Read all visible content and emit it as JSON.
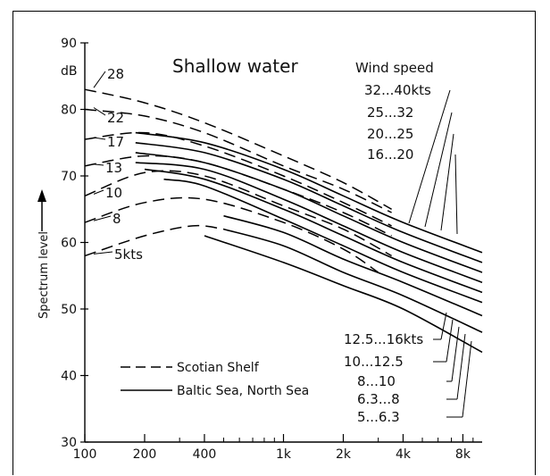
{
  "chart_data": {
    "type": "line",
    "title": "Shallow water",
    "ylabel": "Spectrum level",
    "y_unit": "dB",
    "x_scale": "log",
    "xlim": [
      100,
      10000
    ],
    "ylim": [
      30,
      90
    ],
    "y_ticks": [
      30,
      40,
      50,
      60,
      70,
      80,
      90
    ],
    "x_ticks": [
      {
        "value": 100,
        "label": "100"
      },
      {
        "value": 200,
        "label": "200"
      },
      {
        "value": 400,
        "label": "400"
      },
      {
        "value": 1000,
        "label": "1k"
      },
      {
        "value": 2000,
        "label": "2k"
      },
      {
        "value": 4000,
        "label": "4k"
      },
      {
        "value": 8000,
        "label": "8k"
      }
    ],
    "legend": {
      "entries": [
        {
          "label": "Scotian Shelf",
          "style": "dashed"
        },
        {
          "label": "Baltic Sea, North Sea",
          "style": "solid"
        }
      ],
      "placement": "bottom-left"
    },
    "wind_title": "Wind speed",
    "series": [
      {
        "name": "28",
        "style": "dashed",
        "x": [
          100,
          200,
          400,
          1000,
          2000,
          3500
        ],
        "y": [
          83,
          81,
          78,
          73,
          69,
          65
        ]
      },
      {
        "name": "22",
        "style": "dashed",
        "x": [
          100,
          200,
          400,
          1000,
          2000,
          3500
        ],
        "y": [
          80,
          79,
          76.5,
          71.5,
          68,
          64.5
        ]
      },
      {
        "name": "17",
        "style": "dashed",
        "x": [
          100,
          200,
          400,
          1000,
          2000,
          3500
        ],
        "y": [
          75.5,
          76.5,
          74.5,
          70,
          66,
          62.5
        ]
      },
      {
        "name": "13",
        "style": "dashed",
        "x": [
          100,
          200,
          400,
          1000,
          2000,
          3500
        ],
        "y": [
          71.5,
          73,
          72,
          68,
          64.5,
          61
        ]
      },
      {
        "name": "10",
        "style": "dashed",
        "x": [
          100,
          200,
          400,
          1000,
          2000,
          3500
        ],
        "y": [
          67,
          70.5,
          70,
          65.5,
          62,
          58
        ]
      },
      {
        "name": "8",
        "style": "dashed",
        "x": [
          100,
          200,
          400,
          1000,
          2000,
          3000
        ],
        "y": [
          63,
          66,
          66.5,
          63,
          59,
          55.5
        ]
      },
      {
        "name": "5kts",
        "style": "dashed",
        "x": [
          100,
          200,
          350,
          500
        ],
        "y": [
          58,
          61,
          62.5,
          62
        ]
      },
      {
        "name": "32...40kts",
        "style": "solid",
        "x": [
          180,
          400,
          1000,
          2000,
          4000,
          10000
        ],
        "y": [
          76.5,
          75,
          71,
          67,
          63,
          58.5
        ]
      },
      {
        "name": "25...32",
        "style": "solid",
        "x": [
          180,
          400,
          1000,
          2000,
          4000,
          10000
        ],
        "y": [
          75,
          73.5,
          69.5,
          65.5,
          61.5,
          57
        ]
      },
      {
        "name": "20...25",
        "style": "solid",
        "x": [
          180,
          400,
          1000,
          2000,
          4000,
          10000
        ],
        "y": [
          73.5,
          72,
          68,
          64,
          60,
          55.5
        ]
      },
      {
        "name": "16...20",
        "style": "solid",
        "x": [
          180,
          400,
          1000,
          2000,
          4000,
          10000
        ],
        "y": [
          72,
          71,
          66.5,
          62.5,
          58.5,
          54
        ]
      },
      {
        "name": "12.5...16kts",
        "style": "solid",
        "x": [
          200,
          400,
          1000,
          2000,
          4000,
          10000
        ],
        "y": [
          71,
          69.5,
          65,
          61,
          57,
          52.5
        ]
      },
      {
        "name": "10...12.5",
        "style": "solid",
        "x": [
          250,
          400,
          1000,
          2000,
          4000,
          10000
        ],
        "y": [
          69.5,
          68.5,
          63.5,
          59.5,
          55.5,
          51
        ]
      },
      {
        "name": "8...10",
        "style": "solid",
        "x": [
          500,
          1000,
          2000,
          4000,
          10000
        ],
        "y": [
          64,
          61.5,
          57.5,
          54,
          49
        ]
      },
      {
        "name": "6.3...8",
        "style": "solid",
        "x": [
          500,
          1000,
          2000,
          4000,
          10000
        ],
        "y": [
          62,
          59.5,
          55.5,
          52,
          46.5
        ]
      },
      {
        "name": "5...6.3",
        "style": "solid",
        "x": [
          400,
          1000,
          2000,
          4000,
          10000
        ],
        "y": [
          61,
          57,
          53.5,
          50,
          43.5
        ]
      }
    ],
    "left_labels": [
      "28",
      "22",
      "17",
      "13",
      "10",
      "8",
      "5kts"
    ],
    "right_labels_top": [
      "32...40kts",
      "25...32",
      "20...25",
      "16...20"
    ],
    "right_labels_bottom": [
      "12.5...16kts",
      "10...12.5",
      "8...10",
      "6.3...8",
      "5...6.3"
    ]
  }
}
